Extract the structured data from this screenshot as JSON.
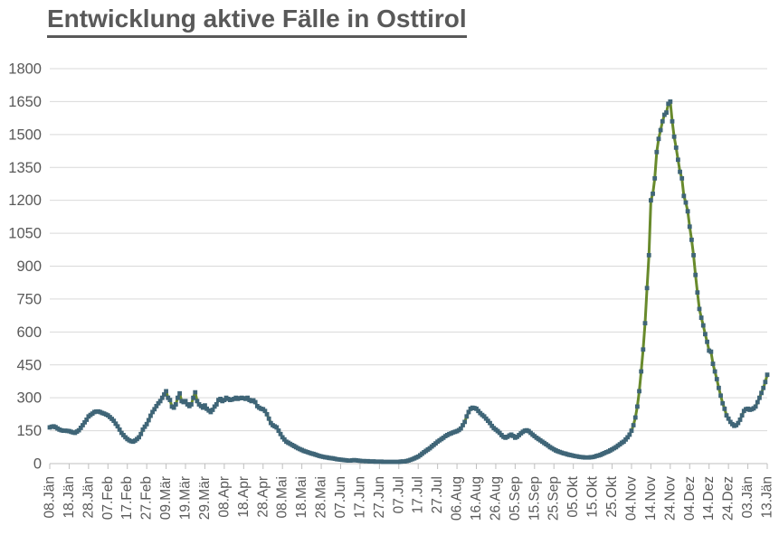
{
  "title": "Entwicklung aktive Fälle in Osttirol",
  "colors": {
    "title_text": "#595959",
    "axis_text": "#595959",
    "gridline": "#d9d9d9",
    "axis_line": "#bfbfbf",
    "series_line": "#688a2c",
    "series_marker": "#3f6577",
    "background": "#ffffff"
  },
  "chart_data": {
    "type": "line",
    "title": "Entwicklung aktive Fälle in Osttirol",
    "xlabel": "",
    "ylabel": "",
    "ylim": [
      0,
      1800
    ],
    "y_ticks": [
      0,
      150,
      300,
      450,
      600,
      750,
      900,
      1050,
      1200,
      1350,
      1500,
      1650,
      1800
    ],
    "grid": "horizontal-only",
    "legend_position": "none",
    "marker_shape": "square",
    "x_tick_interval_days": 10,
    "x_tick_labels": [
      "08.Jän",
      "18.Jän",
      "28.Jän",
      "07.Feb",
      "17.Feb",
      "27.Feb",
      "09.Mär",
      "19.Mär",
      "29.Mär",
      "08.Apr",
      "18.Apr",
      "28.Apr",
      "08.Mai",
      "18.Mai",
      "28.Mai",
      "07.Jun",
      "17.Jun",
      "27.Jun",
      "07.Jul",
      "17.Jul",
      "27.Jul",
      "06.Aug",
      "16.Aug",
      "26.Aug",
      "05.Sep",
      "15.Sep",
      "25.Sep",
      "05.Okt",
      "15.Okt",
      "25.Okt",
      "04.Nov",
      "14.Nov",
      "24.Nov",
      "04.Dez",
      "14.Dez",
      "24.Dez",
      "03.Jän",
      "13.Jän"
    ],
    "series": [
      {
        "name": "aktive Fälle",
        "daily_values": [
          165,
          168,
          170,
          166,
          160,
          155,
          152,
          150,
          150,
          149,
          148,
          145,
          142,
          140,
          146,
          152,
          163,
          175,
          188,
          200,
          215,
          222,
          228,
          235,
          237,
          238,
          235,
          231,
          228,
          224,
          220,
          212,
          204,
          195,
          182,
          170,
          155,
          140,
          130,
          120,
          112,
          106,
          102,
          100,
          105,
          112,
          120,
          135,
          155,
          168,
          180,
          198,
          218,
          235,
          248,
          262,
          275,
          285,
          300,
          315,
          330,
          300,
          290,
          260,
          255,
          270,
          300,
          320,
          285,
          280,
          285,
          270,
          262,
          270,
          300,
          325,
          285,
          270,
          262,
          255,
          265,
          250,
          242,
          235,
          245,
          260,
          270,
          290,
          295,
          285,
          290,
          300,
          295,
          290,
          292,
          295,
          300,
          295,
          298,
          300,
          298,
          295,
          300,
          290,
          285,
          288,
          280,
          262,
          255,
          250,
          248,
          240,
          225,
          205,
          185,
          175,
          170,
          165,
          150,
          135,
          120,
          110,
          100,
          95,
          90,
          85,
          80,
          75,
          70,
          66,
          62,
          58,
          55,
          52,
          49,
          46,
          44,
          41,
          38,
          35,
          33,
          31,
          29,
          28,
          26,
          25,
          24,
          22,
          20,
          19,
          18,
          17,
          16,
          15,
          14,
          14,
          15,
          16,
          15,
          14,
          13,
          12,
          12,
          11,
          11,
          10,
          10,
          10,
          9,
          9,
          9,
          9,
          8,
          8,
          8,
          8,
          8,
          8,
          8,
          8,
          8,
          9,
          10,
          10,
          12,
          14,
          17,
          20,
          24,
          28,
          32,
          38,
          45,
          52,
          58,
          64,
          70,
          78,
          85,
          92,
          100,
          106,
          112,
          118,
          125,
          130,
          135,
          138,
          142,
          145,
          148,
          153,
          160,
          175,
          190,
          215,
          235,
          250,
          255,
          253,
          250,
          240,
          230,
          222,
          215,
          205,
          195,
          185,
          172,
          162,
          155,
          148,
          140,
          130,
          122,
          118,
          122,
          128,
          132,
          126,
          118,
          122,
          130,
          138,
          145,
          150,
          152,
          148,
          140,
          132,
          125,
          118,
          112,
          106,
          100,
          94,
          88,
          82,
          75,
          70,
          65,
          60,
          56,
          53,
          50,
          47,
          45,
          42,
          40,
          38,
          36,
          34,
          33,
          31,
          30,
          29,
          28,
          28,
          28,
          29,
          30,
          32,
          35,
          37,
          40,
          44,
          48,
          52,
          55,
          60,
          65,
          70,
          75,
          82,
          88,
          95,
          100,
          110,
          120,
          132,
          150,
          175,
          210,
          260,
          330,
          420,
          520,
          640,
          800,
          950,
          1200,
          1230,
          1300,
          1420,
          1480,
          1520,
          1560,
          1590,
          1600,
          1640,
          1650,
          1560,
          1490,
          1440,
          1385,
          1330,
          1300,
          1220,
          1190,
          1150,
          1080,
          1020,
          950,
          860,
          780,
          705,
          665,
          630,
          590,
          555,
          515,
          510,
          455,
          420,
          385,
          345,
          310,
          275,
          250,
          220,
          205,
          190,
          180,
          172,
          175,
          185,
          200,
          220,
          240,
          248,
          250,
          245,
          248,
          252,
          260,
          280,
          300,
          322,
          345,
          372,
          405
        ]
      }
    ]
  }
}
